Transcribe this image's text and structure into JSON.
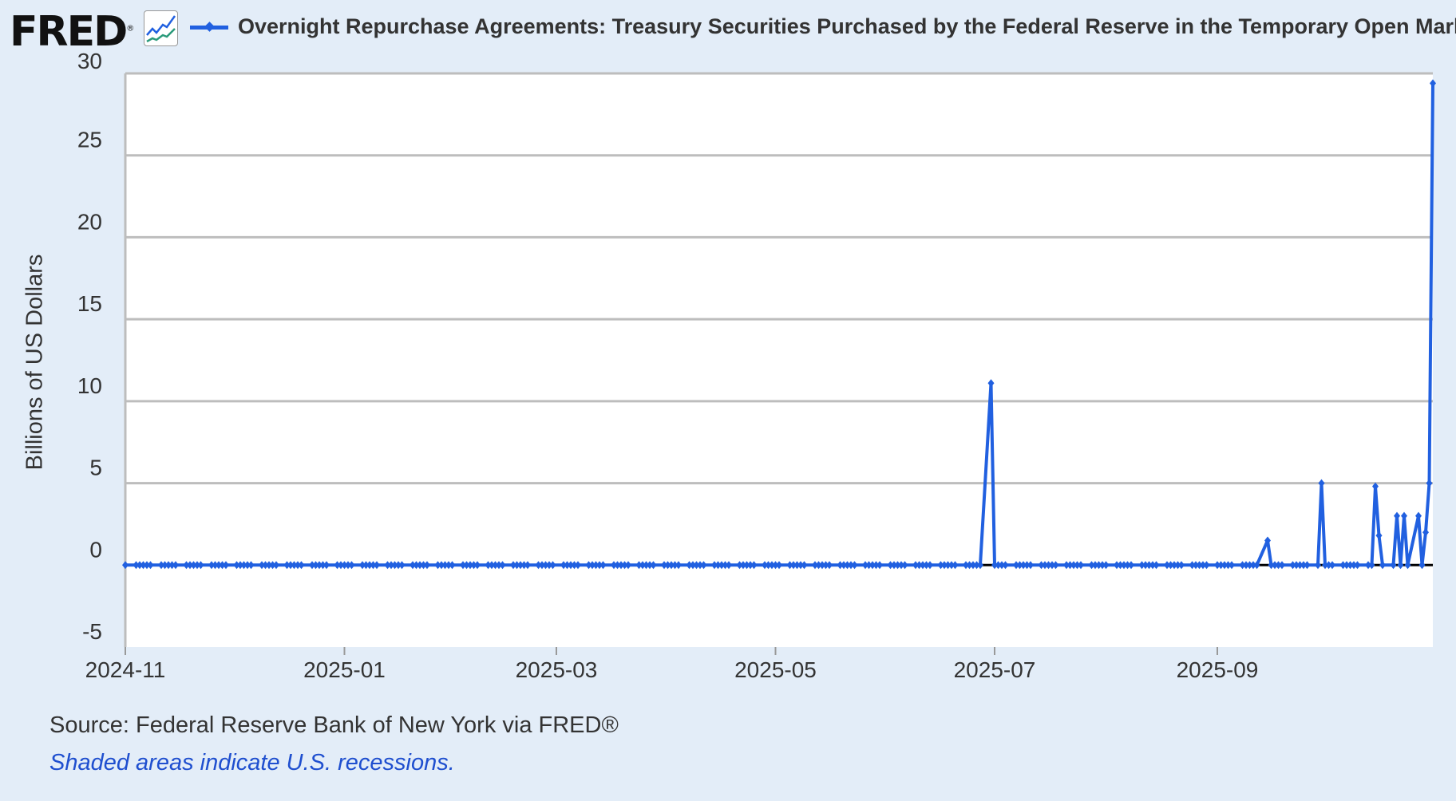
{
  "header": {
    "logo": "FRED",
    "logo_mark": "®",
    "title": "Overnight Repurchase Agreements: Treasury Securities Purchased by the Federal Reserve in the Temporary Open Market"
  },
  "footer": {
    "source": "Source: Federal Reserve Bank of New York via FRED®",
    "recession_note": "Shaded areas indicate U.S. recessions."
  },
  "chart_data": {
    "type": "line",
    "title": "Overnight Repurchase Agreements: Treasury Securities Purchased by the Federal Reserve in the Temporary Open Market",
    "ylabel": "Billions of US Dollars",
    "xlabel": "",
    "ylim": [
      -5,
      30
    ],
    "yticks": [
      "30",
      "25",
      "20",
      "15",
      "10",
      "5",
      "0",
      "-5"
    ],
    "ytick_values": [
      30,
      25,
      20,
      15,
      10,
      5,
      0,
      -5
    ],
    "xlim": [
      "2024-11-01",
      "2025-10-31"
    ],
    "xticks": [
      "2024-11",
      "2025-01",
      "2025-03",
      "2025-05",
      "2025-07",
      "2025-09"
    ],
    "xtick_dates": [
      "2024-11-01",
      "2025-01-01",
      "2025-03-01",
      "2025-05-01",
      "2025-07-01",
      "2025-09-01"
    ],
    "frequency": "business daily",
    "start": "2024-11-01",
    "end": "2025-10-31",
    "default_value": 0,
    "nonzero_points": {
      "2025-06-30": 11.1,
      "2025-09-15": 1.5,
      "2025-09-30": 5.0,
      "2025-10-15": 4.8,
      "2025-10-16": 1.8,
      "2025-10-21": 3.0,
      "2025-10-23": 3.0,
      "2025-10-27": 3.0,
      "2025-10-29": 2.0,
      "2025-10-30": 5.0,
      "2025-10-31": 29.4
    },
    "series_color": "#2160e0",
    "grid": true,
    "legend": "top"
  }
}
